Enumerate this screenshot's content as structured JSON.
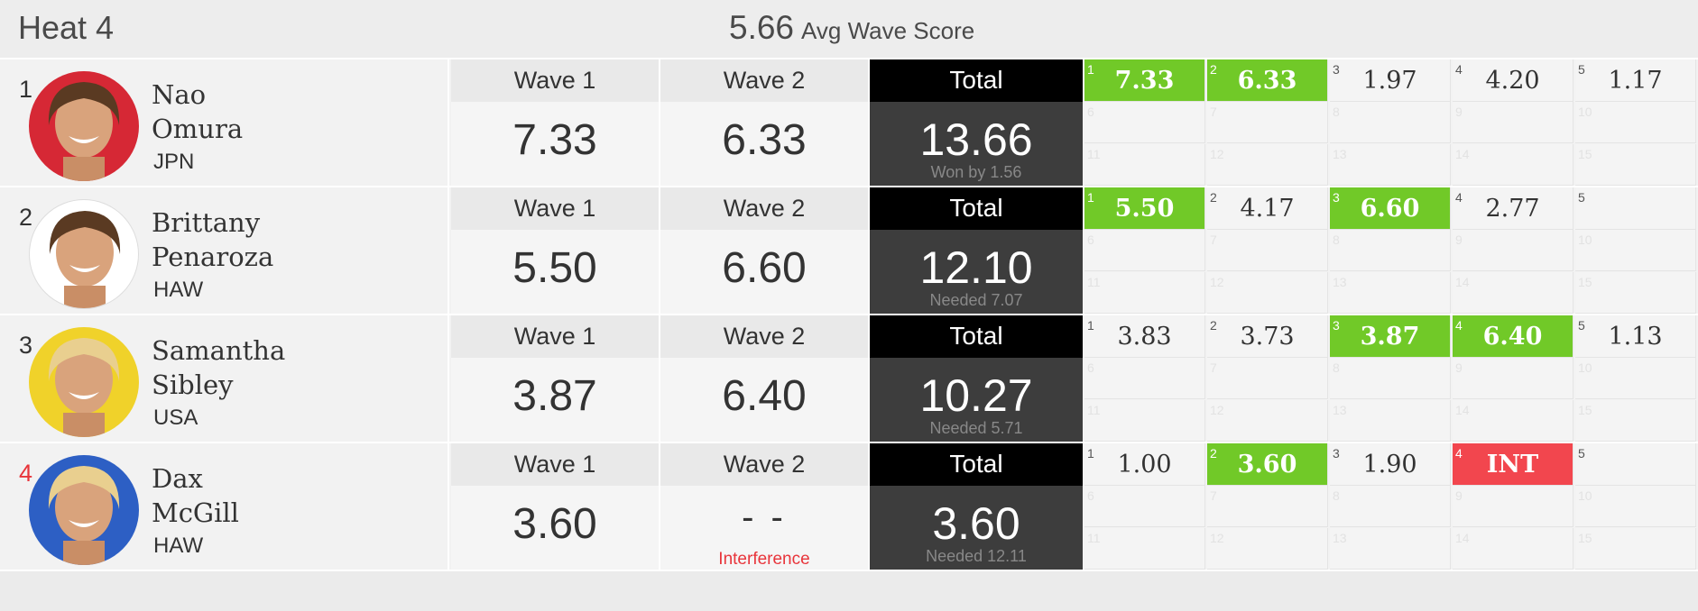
{
  "header": {
    "heat": "Heat 4",
    "avg_value": "5.66",
    "avg_label": "Avg Wave Score"
  },
  "labels": {
    "wave1": "Wave 1",
    "wave2": "Wave 2",
    "total": "Total"
  },
  "colors": {
    "highlight_green": "#71c928",
    "interference_red": "#f2464e",
    "place_red": "#e8353b"
  },
  "athletes": [
    {
      "place": "1",
      "place_red": false,
      "first": "Nao",
      "last": "Omura",
      "country": "JPN",
      "avatar_bg": "#d62835",
      "wave1": "7.33",
      "wave2": "6.33",
      "wave2_note": "",
      "total": "13.66",
      "total_note": "Won by 1.56",
      "waves": [
        {
          "n": "1",
          "v": "7.33",
          "state": "green"
        },
        {
          "n": "2",
          "v": "6.33",
          "state": "green"
        },
        {
          "n": "3",
          "v": "1.97",
          "state": ""
        },
        {
          "n": "4",
          "v": "4.20",
          "state": ""
        },
        {
          "n": "5",
          "v": "1.17",
          "state": ""
        }
      ]
    },
    {
      "place": "2",
      "place_red": false,
      "first": "Brittany",
      "last": "Penaroza",
      "country": "HAW",
      "avatar_bg": "#ffffff",
      "wave1": "5.50",
      "wave2": "6.60",
      "wave2_note": "",
      "total": "12.10",
      "total_note": "Needed 7.07",
      "waves": [
        {
          "n": "1",
          "v": "5.50",
          "state": "green"
        },
        {
          "n": "2",
          "v": "4.17",
          "state": ""
        },
        {
          "n": "3",
          "v": "6.60",
          "state": "green"
        },
        {
          "n": "4",
          "v": "2.77",
          "state": ""
        },
        {
          "n": "5",
          "v": "",
          "state": "empty"
        }
      ]
    },
    {
      "place": "3",
      "place_red": false,
      "first": "Samantha",
      "last": "Sibley",
      "country": "USA",
      "avatar_bg": "#f0d22a",
      "wave1": "3.87",
      "wave2": "6.40",
      "wave2_note": "",
      "total": "10.27",
      "total_note": "Needed 5.71",
      "waves": [
        {
          "n": "1",
          "v": "3.83",
          "state": ""
        },
        {
          "n": "2",
          "v": "3.73",
          "state": ""
        },
        {
          "n": "3",
          "v": "3.87",
          "state": "green"
        },
        {
          "n": "4",
          "v": "6.40",
          "state": "green"
        },
        {
          "n": "5",
          "v": "1.13",
          "state": ""
        }
      ]
    },
    {
      "place": "4",
      "place_red": true,
      "first": "Dax",
      "last": "McGill",
      "country": "HAW",
      "avatar_bg": "#2d5fc4",
      "wave1": "3.60",
      "wave2": "- -",
      "wave2_note": "Interference",
      "total": "3.60",
      "total_note": "Needed 12.11",
      "waves": [
        {
          "n": "1",
          "v": "1.00",
          "state": ""
        },
        {
          "n": "2",
          "v": "3.60",
          "state": "green"
        },
        {
          "n": "3",
          "v": "1.90",
          "state": ""
        },
        {
          "n": "4",
          "v": "INT",
          "state": "red"
        },
        {
          "n": "5",
          "v": "",
          "state": "empty"
        }
      ]
    }
  ]
}
